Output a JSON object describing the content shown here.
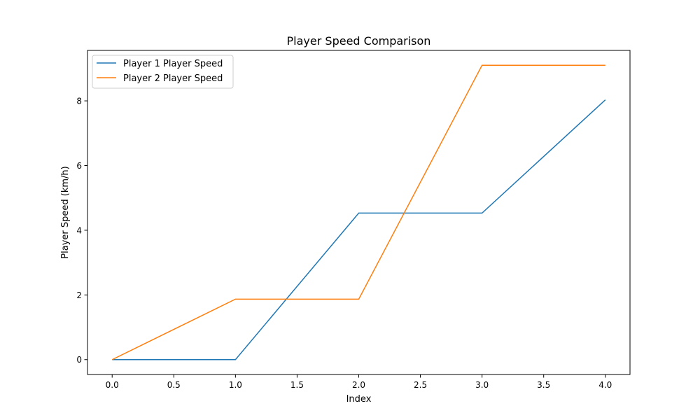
{
  "chart_data": {
    "type": "line",
    "title": "Player Speed Comparison",
    "xlabel": "Index",
    "ylabel": "Player Speed (km/h)",
    "x": [
      0,
      1,
      2,
      3,
      4
    ],
    "xlim": [
      -0.2,
      4.2
    ],
    "ylim": [
      -0.46,
      9.56
    ],
    "xticks": [
      0.0,
      0.5,
      1.0,
      1.5,
      2.0,
      2.5,
      3.0,
      3.5,
      4.0
    ],
    "xtick_labels": [
      "0.0",
      "0.5",
      "1.0",
      "1.5",
      "2.0",
      "2.5",
      "3.0",
      "3.5",
      "4.0"
    ],
    "yticks": [
      0,
      2,
      4,
      6,
      8
    ],
    "ytick_labels": [
      "0",
      "2",
      "4",
      "6",
      "8"
    ],
    "grid": false,
    "legend_position": "top-left",
    "series": [
      {
        "name": "Player 1 Player Speed",
        "color": "#1f77b4",
        "values": [
          0,
          0,
          4.53,
          4.53,
          8.03
        ]
      },
      {
        "name": "Player 2 Player Speed",
        "color": "#ff7f0e",
        "values": [
          0,
          1.87,
          1.87,
          9.1,
          9.1
        ]
      }
    ]
  }
}
